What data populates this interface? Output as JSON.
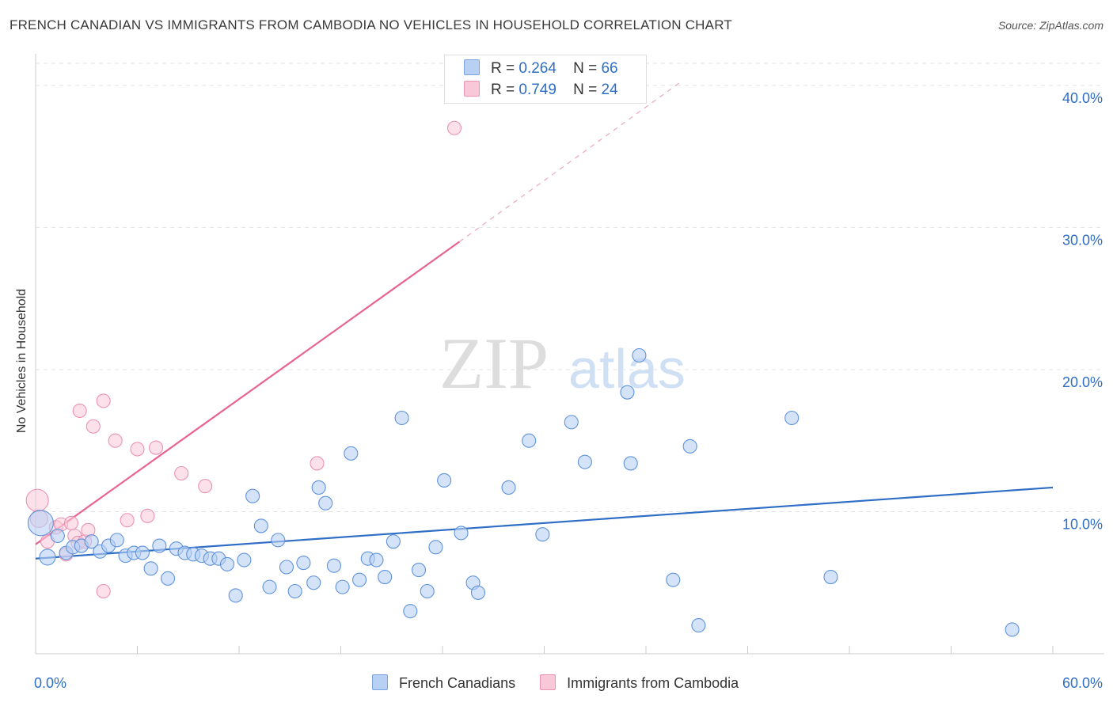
{
  "title": "FRENCH CANADIAN VS IMMIGRANTS FROM CAMBODIA NO VEHICLES IN HOUSEHOLD CORRELATION CHART",
  "source": "Source: ZipAtlas.com",
  "watermark": {
    "zip": "ZIP",
    "atlas": "atlas"
  },
  "legend": {
    "r_label": "R =",
    "n_label": "N =",
    "series": [
      {
        "name": "French Canadians",
        "r": "0.264",
        "n": "66"
      },
      {
        "name": "Immigrants from Cambodia",
        "r": "0.749",
        "n": "24"
      }
    ]
  },
  "chart_data": {
    "type": "scatter",
    "title": "FRENCH CANADIAN VS IMMIGRANTS FROM CAMBODIA NO VEHICLES IN HOUSEHOLD CORRELATION CHART",
    "xlabel": "",
    "ylabel": "No Vehicles in Household",
    "xlim": [
      0,
      60
    ],
    "ylim": [
      0,
      42
    ],
    "x_tick_labels": [
      "0.0%",
      "60.0%"
    ],
    "y_ticks": [
      10,
      20,
      30,
      40
    ],
    "y_tick_labels": [
      "10.0%",
      "20.0%",
      "30.0%",
      "40.0%"
    ],
    "grid": true,
    "colors": {
      "blue": "#2f6ec5",
      "blue_fill": "#b8d0f3",
      "pink": "#e8648f",
      "pink_fill": "#f9c8d8",
      "tick_text": "#2f6ec5"
    },
    "series": [
      {
        "name": "French Canadians",
        "color": "#2f6ec5",
        "trend": {
          "x": [
            0,
            60
          ],
          "y": [
            6.7,
            11.7
          ]
        },
        "points": [
          [
            0.3,
            9.2
          ],
          [
            0.7,
            6.8
          ],
          [
            1.3,
            8.3
          ],
          [
            1.8,
            7.1
          ],
          [
            2.2,
            7.5
          ],
          [
            2.7,
            7.6
          ],
          [
            3.3,
            7.9
          ],
          [
            3.8,
            7.2
          ],
          [
            4.3,
            7.6
          ],
          [
            4.8,
            8.0
          ],
          [
            5.3,
            6.9
          ],
          [
            5.8,
            7.1
          ],
          [
            6.3,
            7.1
          ],
          [
            6.8,
            6.0
          ],
          [
            7.3,
            7.6
          ],
          [
            7.8,
            5.3
          ],
          [
            8.3,
            7.4
          ],
          [
            8.8,
            7.1
          ],
          [
            9.3,
            7.0
          ],
          [
            9.8,
            6.9
          ],
          [
            10.3,
            6.7
          ],
          [
            10.8,
            6.7
          ],
          [
            11.3,
            6.3
          ],
          [
            11.8,
            4.1
          ],
          [
            12.3,
            6.6
          ],
          [
            12.8,
            11.1
          ],
          [
            13.3,
            9.0
          ],
          [
            13.8,
            4.7
          ],
          [
            14.3,
            8.0
          ],
          [
            14.8,
            6.1
          ],
          [
            15.3,
            4.4
          ],
          [
            15.8,
            6.4
          ],
          [
            16.4,
            5.0
          ],
          [
            16.7,
            11.7
          ],
          [
            17.1,
            10.6
          ],
          [
            17.6,
            6.2
          ],
          [
            18.1,
            4.7
          ],
          [
            18.6,
            14.1
          ],
          [
            19.1,
            5.2
          ],
          [
            19.6,
            6.7
          ],
          [
            20.1,
            6.6
          ],
          [
            20.6,
            5.4
          ],
          [
            21.1,
            7.9
          ],
          [
            21.6,
            16.6
          ],
          [
            22.1,
            3.0
          ],
          [
            22.6,
            5.9
          ],
          [
            23.1,
            4.4
          ],
          [
            23.6,
            7.5
          ],
          [
            24.1,
            12.2
          ],
          [
            25.1,
            8.5
          ],
          [
            25.8,
            5.0
          ],
          [
            26.1,
            4.3
          ],
          [
            27.9,
            11.7
          ],
          [
            29.1,
            15.0
          ],
          [
            29.9,
            8.4
          ],
          [
            31.6,
            16.3
          ],
          [
            32.4,
            13.5
          ],
          [
            34.9,
            18.4
          ],
          [
            35.1,
            13.4
          ],
          [
            35.6,
            21.0
          ],
          [
            37.6,
            5.2
          ],
          [
            38.6,
            14.6
          ],
          [
            39.1,
            2.0
          ],
          [
            44.6,
            16.6
          ],
          [
            46.9,
            5.4
          ],
          [
            57.6,
            1.7
          ]
        ]
      },
      {
        "name": "Immigrants from Cambodia",
        "color": "#e8648f",
        "trend": {
          "x": [
            0,
            25
          ],
          "y": [
            7.7,
            29.0
          ]
        },
        "trend_extension": {
          "x": [
            25,
            38
          ],
          "y": [
            29.0,
            40.2
          ]
        },
        "points": [
          [
            0.1,
            10.8
          ],
          [
            0.2,
            9.5
          ],
          [
            0.7,
            7.9
          ],
          [
            1.2,
            8.9
          ],
          [
            1.5,
            9.1
          ],
          [
            1.8,
            7.0
          ],
          [
            2.1,
            9.2
          ],
          [
            2.3,
            8.3
          ],
          [
            2.5,
            7.8
          ],
          [
            2.9,
            7.9
          ],
          [
            3.1,
            8.7
          ],
          [
            2.6,
            17.1
          ],
          [
            3.4,
            16.0
          ],
          [
            4.0,
            4.4
          ],
          [
            4.0,
            17.8
          ],
          [
            4.7,
            15.0
          ],
          [
            5.4,
            9.4
          ],
          [
            6.0,
            14.4
          ],
          [
            6.6,
            9.7
          ],
          [
            7.1,
            14.5
          ],
          [
            8.6,
            12.7
          ],
          [
            10.0,
            11.8
          ],
          [
            16.6,
            13.4
          ],
          [
            24.7,
            37.0
          ]
        ]
      }
    ]
  }
}
